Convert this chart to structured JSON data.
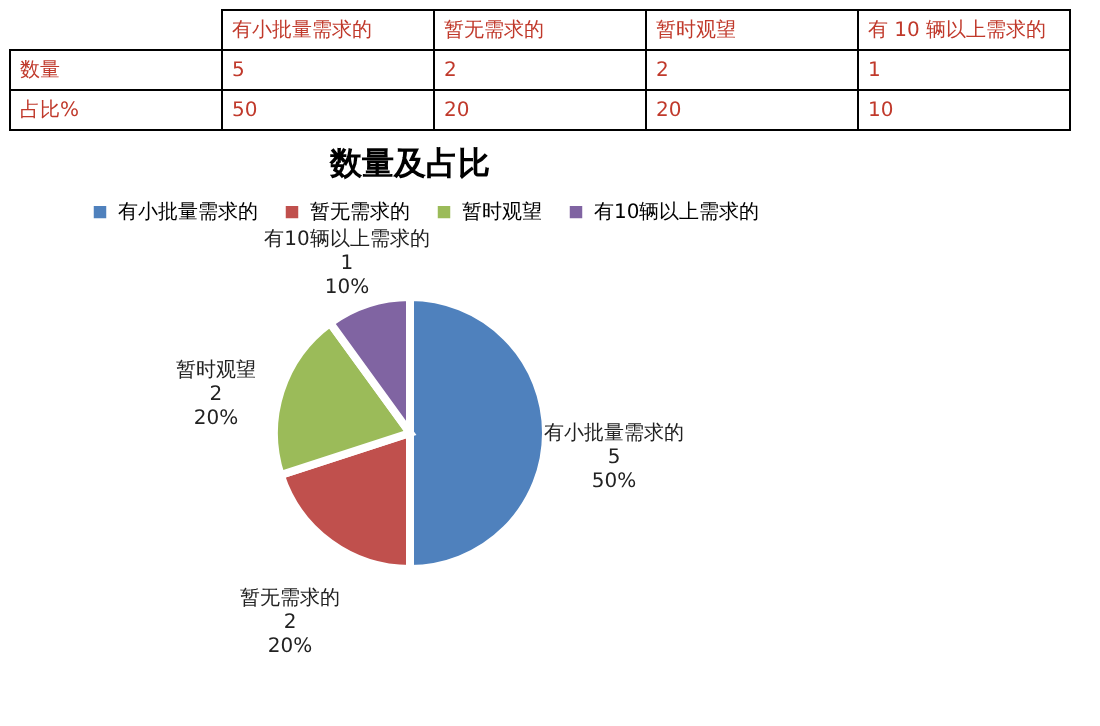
{
  "chart_data": [
    {
      "type": "other",
      "annotations": [
        "有小批量需求的",
        "暂无需求的",
        "暂时观望",
        "有 10 辆以上需求的",
        "数量",
        "5",
        "2",
        "2",
        "1",
        "占比%",
        "50",
        "20",
        "20",
        "10"
      ]
    },
    {
      "type": "pie",
      "title": "数量及占比",
      "categories": [
        "有小批量需求的",
        "暂无需求的",
        "暂时观望",
        "有10辆以上需求的"
      ],
      "values": [
        5,
        2,
        2,
        1
      ],
      "colors": [
        "#4f81bd",
        "#c0504d",
        "#9bbb59",
        "#8064a2"
      ],
      "legend": "top",
      "value_labels": [
        "有小批量需求的\n5\n50%",
        "暂无需求的\n2\n20%",
        "暂时观望\n2\n20%",
        "有10辆以上需求的\n1\n10%"
      ]
    }
  ]
}
